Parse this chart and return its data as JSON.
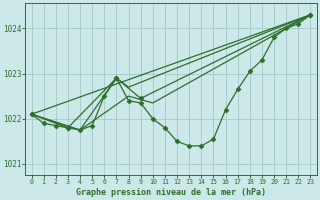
{
  "title": "Graphe pression niveau de la mer (hPa)",
  "bg_color": "#cce8e8",
  "plot_bg_color": "#cce8e8",
  "grid_color": "#aacccc",
  "line_color": "#2d6e2d",
  "xlim": [
    -0.5,
    23.5
  ],
  "ylim": [
    1020.75,
    1024.55
  ],
  "yticks": [
    1021,
    1022,
    1023,
    1024
  ],
  "xticks": [
    0,
    1,
    2,
    3,
    4,
    5,
    6,
    7,
    8,
    9,
    10,
    11,
    12,
    13,
    14,
    15,
    16,
    17,
    18,
    19,
    20,
    21,
    22,
    23
  ],
  "main_x": [
    0,
    1,
    2,
    3,
    4,
    5,
    6,
    7,
    8,
    9,
    10,
    11,
    12,
    13,
    14,
    15,
    16,
    17,
    18,
    19,
    20,
    21,
    22,
    23
  ],
  "main_y": [
    1022.1,
    1021.9,
    1021.85,
    1021.8,
    1021.75,
    1021.85,
    1022.5,
    1022.9,
    1022.4,
    1022.35,
    1022.0,
    1021.8,
    1021.5,
    1021.4,
    1021.4,
    1021.55,
    1022.2,
    1022.65,
    1023.05,
    1023.3,
    1023.8,
    1024.0,
    1024.1,
    1024.3
  ],
  "line2_x": [
    0,
    3,
    7,
    9,
    23
  ],
  "line2_y": [
    1022.1,
    1021.8,
    1022.9,
    1022.45,
    1024.3
  ],
  "line3_x": [
    0,
    4,
    7,
    8,
    23
  ],
  "line3_y": [
    1022.1,
    1021.75,
    1022.9,
    1022.7,
    1024.3
  ],
  "line4_x": [
    0,
    4,
    8,
    10,
    23
  ],
  "line4_y": [
    1022.1,
    1021.75,
    1022.5,
    1022.35,
    1024.3
  ],
  "line5_x": [
    0,
    23
  ],
  "line5_y": [
    1022.1,
    1024.3
  ]
}
